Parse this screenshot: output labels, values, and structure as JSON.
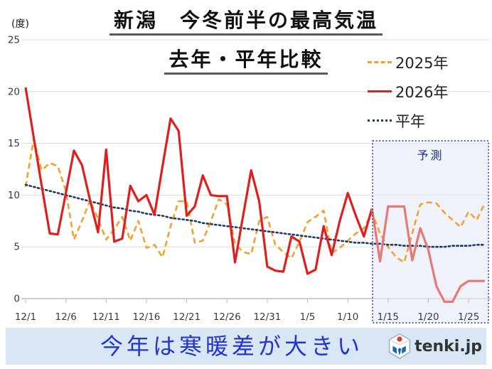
{
  "unit_label": "(度)",
  "title": {
    "line1": "新潟　今冬前半の最高気温",
    "line2": "去年・平年比較"
  },
  "legend": [
    {
      "label": "2025年",
      "color": "#F2A12E",
      "style": "dashed"
    },
    {
      "label": "2026年",
      "color": "#E01E1E",
      "style": "solid"
    },
    {
      "label": "平年",
      "color": "#1F3864",
      "style": "dotted"
    }
  ],
  "forecast_label": "予測",
  "banner": {
    "text": "今年は寒暖差が大きい",
    "logo_text": "tenki.jp"
  },
  "chart_data": {
    "type": "line",
    "title": "新潟 今冬前半の最高気温 去年・平年比較",
    "ylabel": "度",
    "ylim": [
      0,
      25
    ],
    "y_ticks": [
      0,
      5,
      10,
      15,
      20,
      25
    ],
    "grid": true,
    "legend_position": "top-right",
    "forecast_start": "1/13",
    "forecast_region_label": "予測",
    "x": [
      "12/1",
      "12/2",
      "12/3",
      "12/4",
      "12/5",
      "12/6",
      "12/7",
      "12/8",
      "12/9",
      "12/10",
      "12/11",
      "12/12",
      "12/13",
      "12/14",
      "12/15",
      "12/16",
      "12/17",
      "12/18",
      "12/19",
      "12/20",
      "12/21",
      "12/22",
      "12/23",
      "12/24",
      "12/25",
      "12/26",
      "12/27",
      "12/28",
      "12/29",
      "12/30",
      "12/31",
      "1/1",
      "1/2",
      "1/3",
      "1/4",
      "1/5",
      "1/6",
      "1/7",
      "1/8",
      "1/9",
      "1/10",
      "1/11",
      "1/12",
      "1/13",
      "1/14",
      "1/15",
      "1/16",
      "1/17",
      "1/18",
      "1/19",
      "1/20",
      "1/21",
      "1/22",
      "1/23",
      "1/24",
      "1/25",
      "1/26",
      "1/27"
    ],
    "x_ticks": [
      {
        "label": "12/1",
        "index": 0
      },
      {
        "label": "12/6",
        "index": 5
      },
      {
        "label": "12/11",
        "index": 10
      },
      {
        "label": "12/16",
        "index": 15
      },
      {
        "label": "12/21",
        "index": 20
      },
      {
        "label": "12/26",
        "index": 25
      },
      {
        "label": "12/31",
        "index": 30
      },
      {
        "label": "1/5",
        "index": 35
      },
      {
        "label": "1/10",
        "index": 40
      },
      {
        "label": "1/15",
        "index": 45
      },
      {
        "label": "1/20",
        "index": 50
      },
      {
        "label": "1/25",
        "index": 55
      }
    ],
    "series": [
      {
        "name": "2025年",
        "color": "#F2A12E",
        "line": "dashed",
        "values": [
          10.8,
          15.4,
          12.4,
          13.1,
          12.8,
          10.4,
          5.7,
          7.5,
          9.5,
          7.7,
          5.7,
          6.7,
          7.9,
          5.6,
          7.5,
          4.9,
          5.2,
          4.0,
          7.0,
          9.4,
          9.4,
          5.4,
          5.6,
          7.5,
          9.6,
          9.1,
          5.3,
          4.5,
          4.3,
          7.5,
          7.9,
          5.2,
          4.5,
          3.9,
          5.5,
          7.4,
          7.9,
          8.5,
          4.4,
          4.9,
          5.6,
          6.3,
          6.8,
          8.3,
          6.3,
          5.0,
          4.0,
          3.5,
          6.3,
          9.1,
          9.3,
          9.2,
          8.3,
          7.6,
          6.9,
          8.4,
          7.6,
          9.2
        ]
      },
      {
        "name": "2026年",
        "color": "#E01E1E",
        "line": "solid",
        "forecast_color": "#E87878",
        "values": [
          20.4,
          15.6,
          10.9,
          6.3,
          6.2,
          10.2,
          14.3,
          12.9,
          9.5,
          6.4,
          14.4,
          5.5,
          5.8,
          10.9,
          9.4,
          10.0,
          8.1,
          12.8,
          17.4,
          16.2,
          8.0,
          8.9,
          11.9,
          10.0,
          9.9,
          9.9,
          3.5,
          8.0,
          12.4,
          9.4,
          3.1,
          2.7,
          2.6,
          6.0,
          5.5,
          2.4,
          2.8,
          7.0,
          4.2,
          7.5,
          10.2,
          8.0,
          6.0,
          8.7,
          3.6,
          8.9,
          8.9,
          8.9,
          3.7,
          6.8,
          4.7,
          1.2,
          -0.3,
          -0.3,
          1.2,
          1.7,
          1.7,
          1.7
        ]
      },
      {
        "name": "平年",
        "color": "#1F3864",
        "line": "dotted",
        "values": [
          11.0,
          10.8,
          10.6,
          10.4,
          10.2,
          10.0,
          9.8,
          9.6,
          9.4,
          9.2,
          9.0,
          8.8,
          8.7,
          8.5,
          8.4,
          8.2,
          8.1,
          8.0,
          7.8,
          7.7,
          7.6,
          7.5,
          7.3,
          7.2,
          7.1,
          7.0,
          6.9,
          6.8,
          6.7,
          6.6,
          6.5,
          6.4,
          6.3,
          6.2,
          6.1,
          6.0,
          5.9,
          5.8,
          5.7,
          5.6,
          5.5,
          5.4,
          5.4,
          5.3,
          5.3,
          5.2,
          5.2,
          5.1,
          5.1,
          5.1,
          5.0,
          5.0,
          5.0,
          5.1,
          5.1,
          5.1,
          5.2,
          5.2
        ]
      }
    ],
    "colors": {
      "grid": "#DCDCDC",
      "axis": "#BDBDBD",
      "tick_text": "#3A3A3A",
      "forecast_box_fill": "#E7EAF7",
      "forecast_box_border": "#2B3990"
    }
  }
}
